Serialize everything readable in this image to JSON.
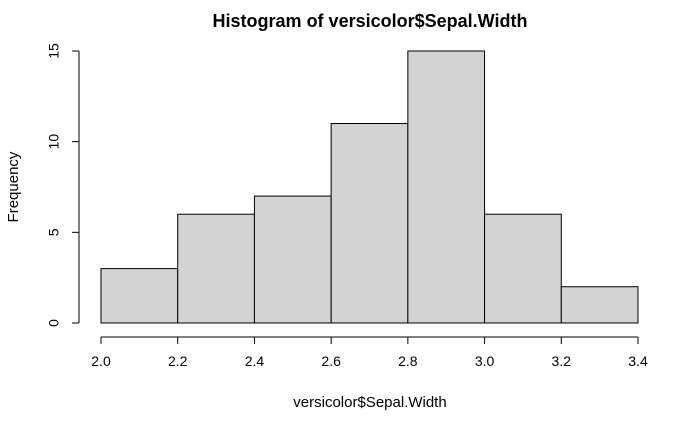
{
  "chart_data": {
    "type": "bar",
    "title": "Histogram of versicolor$Sepal.Width",
    "xlabel": "versicolor$Sepal.Width",
    "ylabel": "Frequency",
    "bins": [
      {
        "x0": 2.0,
        "x1": 2.2,
        "count": 3
      },
      {
        "x0": 2.2,
        "x1": 2.4,
        "count": 6
      },
      {
        "x0": 2.4,
        "x1": 2.6,
        "count": 7
      },
      {
        "x0": 2.6,
        "x1": 2.8,
        "count": 11
      },
      {
        "x0": 2.8,
        "x1": 3.0,
        "count": 15
      },
      {
        "x0": 3.0,
        "x1": 3.2,
        "count": 6
      },
      {
        "x0": 3.2,
        "x1": 3.4,
        "count": 2
      }
    ],
    "xlim": [
      2.0,
      3.4
    ],
    "ylim": [
      0,
      15
    ],
    "x_ticks": [
      "2.0",
      "2.2",
      "2.4",
      "2.6",
      "2.8",
      "3.0",
      "3.2",
      "3.4"
    ],
    "y_ticks": [
      "0",
      "5",
      "10",
      "15"
    ],
    "colors": {
      "bar_fill": "#d3d3d3",
      "bar_stroke": "#000000"
    },
    "grid": false
  }
}
